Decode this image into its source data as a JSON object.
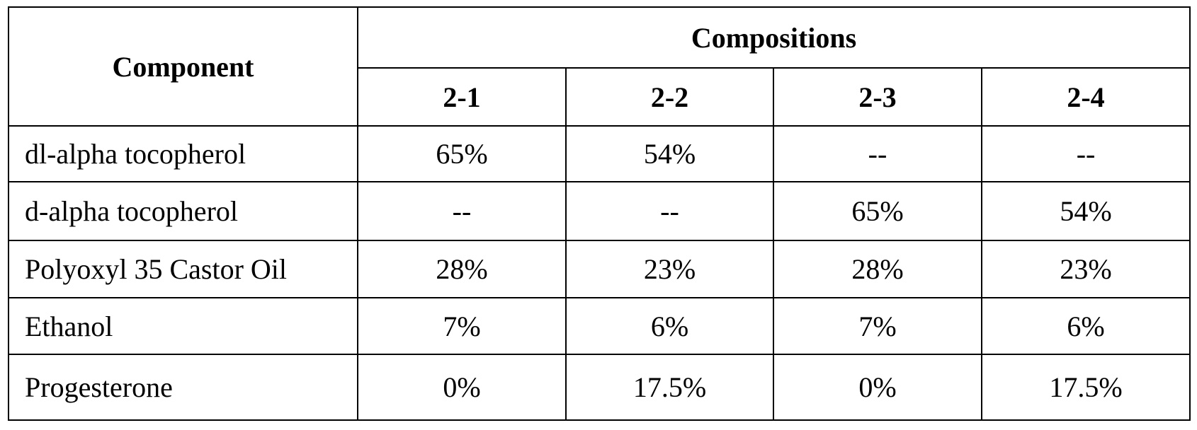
{
  "table": {
    "header": {
      "component": "Component",
      "group": "Compositions",
      "columns": [
        "2-1",
        "2-2",
        "2-3",
        "2-4"
      ]
    },
    "rows": [
      [
        "dl-alpha tocopherol",
        "65%",
        "54%",
        "--",
        "--"
      ],
      [
        "d-alpha tocopherol",
        "--",
        "--",
        "65%",
        "54%"
      ],
      [
        "Polyoxyl 35 Castor Oil",
        "28%",
        "23%",
        "28%",
        "23%"
      ],
      [
        "Ethanol",
        "7%",
        "6%",
        "7%",
        "6%"
      ],
      [
        "Progesterone",
        "0%",
        "17.5%",
        "0%",
        "17.5%"
      ]
    ]
  }
}
